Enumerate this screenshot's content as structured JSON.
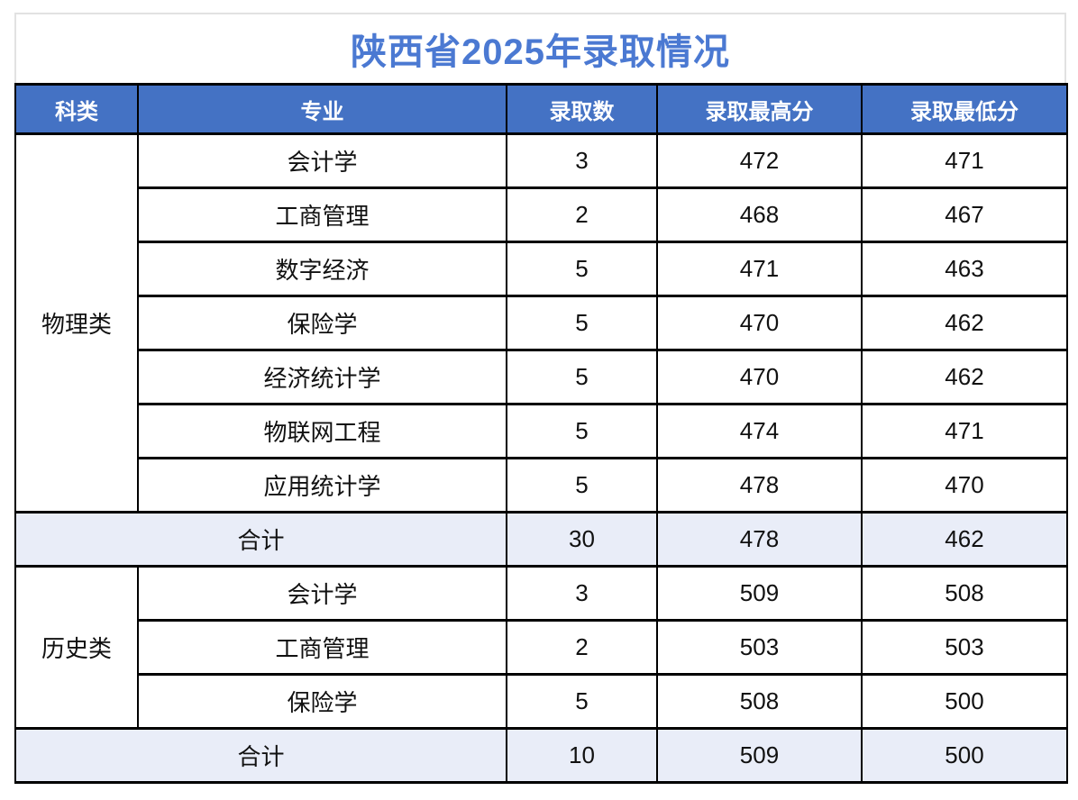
{
  "title": "陕西省2025年录取情况",
  "colors": {
    "title_text": "#4b79d2",
    "header_bg": "#4472c4",
    "header_text": "#ffffff",
    "total_row_bg": "#e9edf8",
    "table_border": "#000000",
    "title_box_border": "#e2e2e2"
  },
  "table": {
    "headers": [
      "科类",
      "专业",
      "录取数",
      "录取最高分",
      "录取最低分"
    ],
    "sections": [
      {
        "category": "物理类",
        "rows": [
          {
            "major": "会计学",
            "count": "3",
            "max": "472",
            "min": "471"
          },
          {
            "major": "工商管理",
            "count": "2",
            "max": "468",
            "min": "467"
          },
          {
            "major": "数字经济",
            "count": "5",
            "max": "471",
            "min": "463"
          },
          {
            "major": "保险学",
            "count": "5",
            "max": "470",
            "min": "462"
          },
          {
            "major": "经济统计学",
            "count": "5",
            "max": "470",
            "min": "462"
          },
          {
            "major": "物联网工程",
            "count": "5",
            "max": "474",
            "min": "471"
          },
          {
            "major": "应用统计学",
            "count": "5",
            "max": "478",
            "min": "470"
          }
        ],
        "total": {
          "label": "合计",
          "count": "30",
          "max": "478",
          "min": "462"
        }
      },
      {
        "category": "历史类",
        "rows": [
          {
            "major": "会计学",
            "count": "3",
            "max": "509",
            "min": "508"
          },
          {
            "major": "工商管理",
            "count": "2",
            "max": "503",
            "min": "503"
          },
          {
            "major": "保险学",
            "count": "5",
            "max": "508",
            "min": "500"
          }
        ],
        "total": {
          "label": "合计",
          "count": "10",
          "max": "509",
          "min": "500"
        }
      }
    ]
  }
}
